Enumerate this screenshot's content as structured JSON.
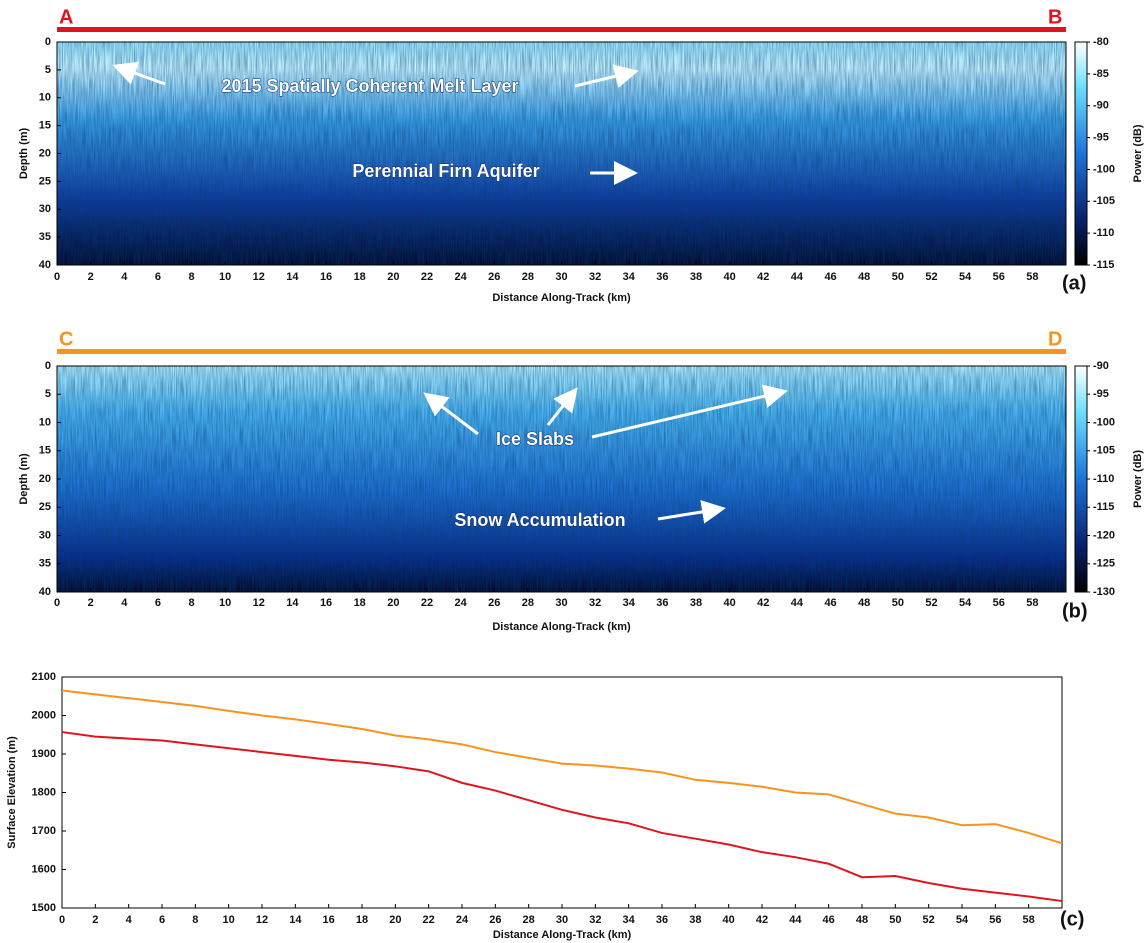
{
  "chart_data": [
    {
      "type": "heatmap",
      "panel_label": "(a)",
      "start_label": "A",
      "end_label": "B",
      "profile_color": "#e0141e",
      "xlabel": "Distance Along-Track (km)",
      "ylabel": "Depth (m)",
      "xlim": [
        0,
        60
      ],
      "xticks": [
        0,
        2,
        4,
        6,
        8,
        10,
        12,
        14,
        16,
        18,
        20,
        22,
        24,
        26,
        28,
        30,
        32,
        34,
        36,
        38,
        40,
        42,
        44,
        46,
        48,
        50,
        52,
        54,
        56,
        58
      ],
      "ylim": [
        0,
        40
      ],
      "yticks": [
        0,
        5,
        10,
        15,
        20,
        25,
        30,
        35,
        40
      ],
      "y_reversed": true,
      "colorbar": {
        "label": "Power (dB)",
        "lim": [
          -115,
          -80
        ],
        "ticks": [
          -80,
          -85,
          -90,
          -95,
          -100,
          -105,
          -110,
          -115
        ]
      },
      "annotations": [
        "2015 Spatially Coherent Melt Layer",
        "Perennial Firn Aquifer"
      ]
    },
    {
      "type": "heatmap",
      "panel_label": "(b)",
      "start_label": "C",
      "end_label": "D",
      "profile_color": "#f7941d",
      "xlabel": "Distance Along-Track (km)",
      "ylabel": "Depth (m)",
      "xlim": [
        0,
        60
      ],
      "xticks": [
        0,
        2,
        4,
        6,
        8,
        10,
        12,
        14,
        16,
        18,
        20,
        22,
        24,
        26,
        28,
        30,
        32,
        34,
        36,
        38,
        40,
        42,
        44,
        46,
        48,
        50,
        52,
        54,
        56,
        58
      ],
      "ylim": [
        0,
        40
      ],
      "yticks": [
        0,
        5,
        10,
        15,
        20,
        25,
        30,
        35,
        40
      ],
      "y_reversed": true,
      "colorbar": {
        "label": "Power (dB)",
        "lim": [
          -130,
          -90
        ],
        "ticks": [
          -90,
          -95,
          -100,
          -105,
          -110,
          -115,
          -120,
          -125,
          -130
        ]
      },
      "annotations": [
        "Ice Slabs",
        "Snow Accumulation"
      ]
    },
    {
      "type": "line",
      "panel_label": "(c)",
      "xlabel": "Distance Along-Track (km)",
      "ylabel": "Surface Elevation (m)",
      "xlim": [
        0,
        60
      ],
      "xticks": [
        0,
        2,
        4,
        6,
        8,
        10,
        12,
        14,
        16,
        18,
        20,
        22,
        24,
        26,
        28,
        30,
        32,
        34,
        36,
        38,
        40,
        42,
        44,
        46,
        48,
        50,
        52,
        54,
        56,
        58
      ],
      "ylim": [
        1500,
        2100
      ],
      "yticks": [
        1500,
        1600,
        1700,
        1800,
        1900,
        2000,
        2100
      ],
      "x": [
        0,
        2,
        4,
        6,
        8,
        10,
        12,
        14,
        16,
        18,
        20,
        22,
        24,
        26,
        28,
        30,
        32,
        34,
        36,
        38,
        40,
        42,
        44,
        46,
        48,
        50,
        52,
        54,
        56,
        58,
        60
      ],
      "series": [
        {
          "color": "#f7941d",
          "values": [
            2065,
            2055,
            2045,
            2035,
            2025,
            2012,
            2000,
            1990,
            1978,
            1965,
            1948,
            1938,
            1925,
            1905,
            1890,
            1875,
            1870,
            1862,
            1852,
            1833,
            1825,
            1815,
            1800,
            1795,
            1770,
            1745,
            1735,
            1715,
            1718,
            1695,
            1668
          ]
        },
        {
          "color": "#e0141e",
          "values": [
            1957,
            1945,
            1940,
            1935,
            1925,
            1915,
            1905,
            1895,
            1885,
            1878,
            1868,
            1855,
            1825,
            1805,
            1780,
            1755,
            1735,
            1720,
            1695,
            1680,
            1665,
            1645,
            1632,
            1615,
            1580,
            1583,
            1565,
            1550,
            1540,
            1530,
            1518
          ]
        }
      ]
    }
  ]
}
